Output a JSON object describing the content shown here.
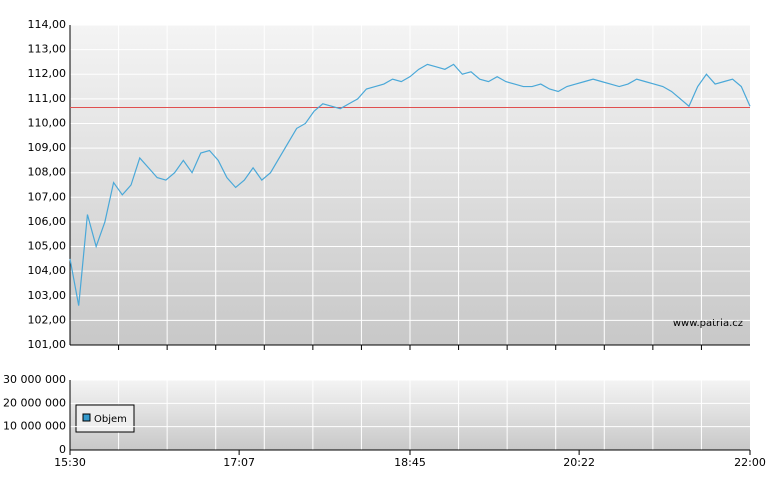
{
  "chart_data": [
    {
      "type": "line",
      "x": [
        "15:30",
        "15:35",
        "15:40",
        "15:45",
        "15:50",
        "15:55",
        "16:00",
        "16:05",
        "16:10",
        "16:15",
        "16:20",
        "16:25",
        "16:30",
        "16:35",
        "16:40",
        "16:45",
        "16:50",
        "16:55",
        "17:00",
        "17:05",
        "17:10",
        "17:15",
        "17:20",
        "17:25",
        "17:30",
        "17:35",
        "17:40",
        "17:45",
        "17:50",
        "17:55",
        "18:00",
        "18:05",
        "18:10",
        "18:15",
        "18:20",
        "18:25",
        "18:30",
        "18:35",
        "18:40",
        "18:45",
        "18:50",
        "18:55",
        "19:00",
        "19:05",
        "19:10",
        "19:15",
        "19:20",
        "19:25",
        "19:30",
        "19:35",
        "19:40",
        "19:45",
        "19:50",
        "19:55",
        "20:00",
        "20:05",
        "20:10",
        "20:15",
        "20:20",
        "20:25",
        "20:30",
        "20:35",
        "20:40",
        "20:45",
        "20:50",
        "20:55",
        "21:00",
        "21:05",
        "21:10",
        "21:15",
        "21:20",
        "21:25",
        "21:30",
        "21:35",
        "21:40",
        "21:45",
        "21:50",
        "21:55",
        "22:00"
      ],
      "series": [
        {
          "color": "#4aa8d8",
          "values": [
            104.5,
            102.6,
            106.3,
            105.0,
            106.0,
            107.6,
            107.1,
            107.5,
            108.6,
            108.2,
            107.8,
            107.7,
            108.0,
            108.5,
            108.0,
            108.8,
            108.9,
            108.5,
            107.8,
            107.4,
            107.7,
            108.2,
            107.7,
            108.0,
            108.6,
            109.2,
            109.8,
            110.0,
            110.5,
            110.8,
            110.7,
            110.6,
            110.8,
            111.0,
            111.4,
            111.5,
            111.6,
            111.8,
            111.7,
            111.9,
            112.2,
            112.4,
            112.3,
            112.2,
            112.4,
            112.0,
            112.1,
            111.8,
            111.7,
            111.9,
            111.7,
            111.6,
            111.5,
            111.5,
            111.6,
            111.4,
            111.3,
            111.5,
            111.6,
            111.7,
            111.8,
            111.7,
            111.6,
            111.5,
            111.6,
            111.8,
            111.7,
            111.6,
            111.5,
            111.3,
            111.0,
            110.7,
            111.5,
            112.0,
            111.6,
            111.7,
            111.8,
            111.5,
            110.7
          ]
        }
      ],
      "reference_line": {
        "value": 110.65,
        "color": "#e05050"
      },
      "xlim": [
        "15:30",
        "22:00"
      ],
      "ylim": [
        101,
        114
      ],
      "yticks": [
        {
          "value": 101,
          "label": "101,00"
        },
        {
          "value": 102,
          "label": "102,00"
        },
        {
          "value": 103,
          "label": "103,00"
        },
        {
          "value": 104,
          "label": "104,00"
        },
        {
          "value": 105,
          "label": "105,00"
        },
        {
          "value": 106,
          "label": "106,00"
        },
        {
          "value": 107,
          "label": "107,00"
        },
        {
          "value": 108,
          "label": "108,00"
        },
        {
          "value": 109,
          "label": "109,00"
        },
        {
          "value": 110,
          "label": "110,00"
        },
        {
          "value": 111,
          "label": "111,00"
        },
        {
          "value": 112,
          "label": "112,00"
        },
        {
          "value": 113,
          "label": "113,00"
        },
        {
          "value": 114,
          "label": "114,00"
        }
      ],
      "watermark": "www.patria.cz",
      "grid": true
    },
    {
      "type": "bar",
      "series": [
        {
          "name": "Objem",
          "color": "#3399cc",
          "values": []
        }
      ],
      "xlim": [
        "15:30",
        "22:00"
      ],
      "xticks": [
        "15:30",
        "17:07",
        "18:45",
        "20:22",
        "22:00"
      ],
      "ylim": [
        0,
        30000000
      ],
      "yticks": [
        0,
        {
          "value": 10000000,
          "label": "10 000 000"
        },
        {
          "value": 20000000,
          "label": "20 000 000"
        },
        {
          "value": 30000000,
          "label": "30 000 000"
        }
      ],
      "grid": true
    }
  ]
}
